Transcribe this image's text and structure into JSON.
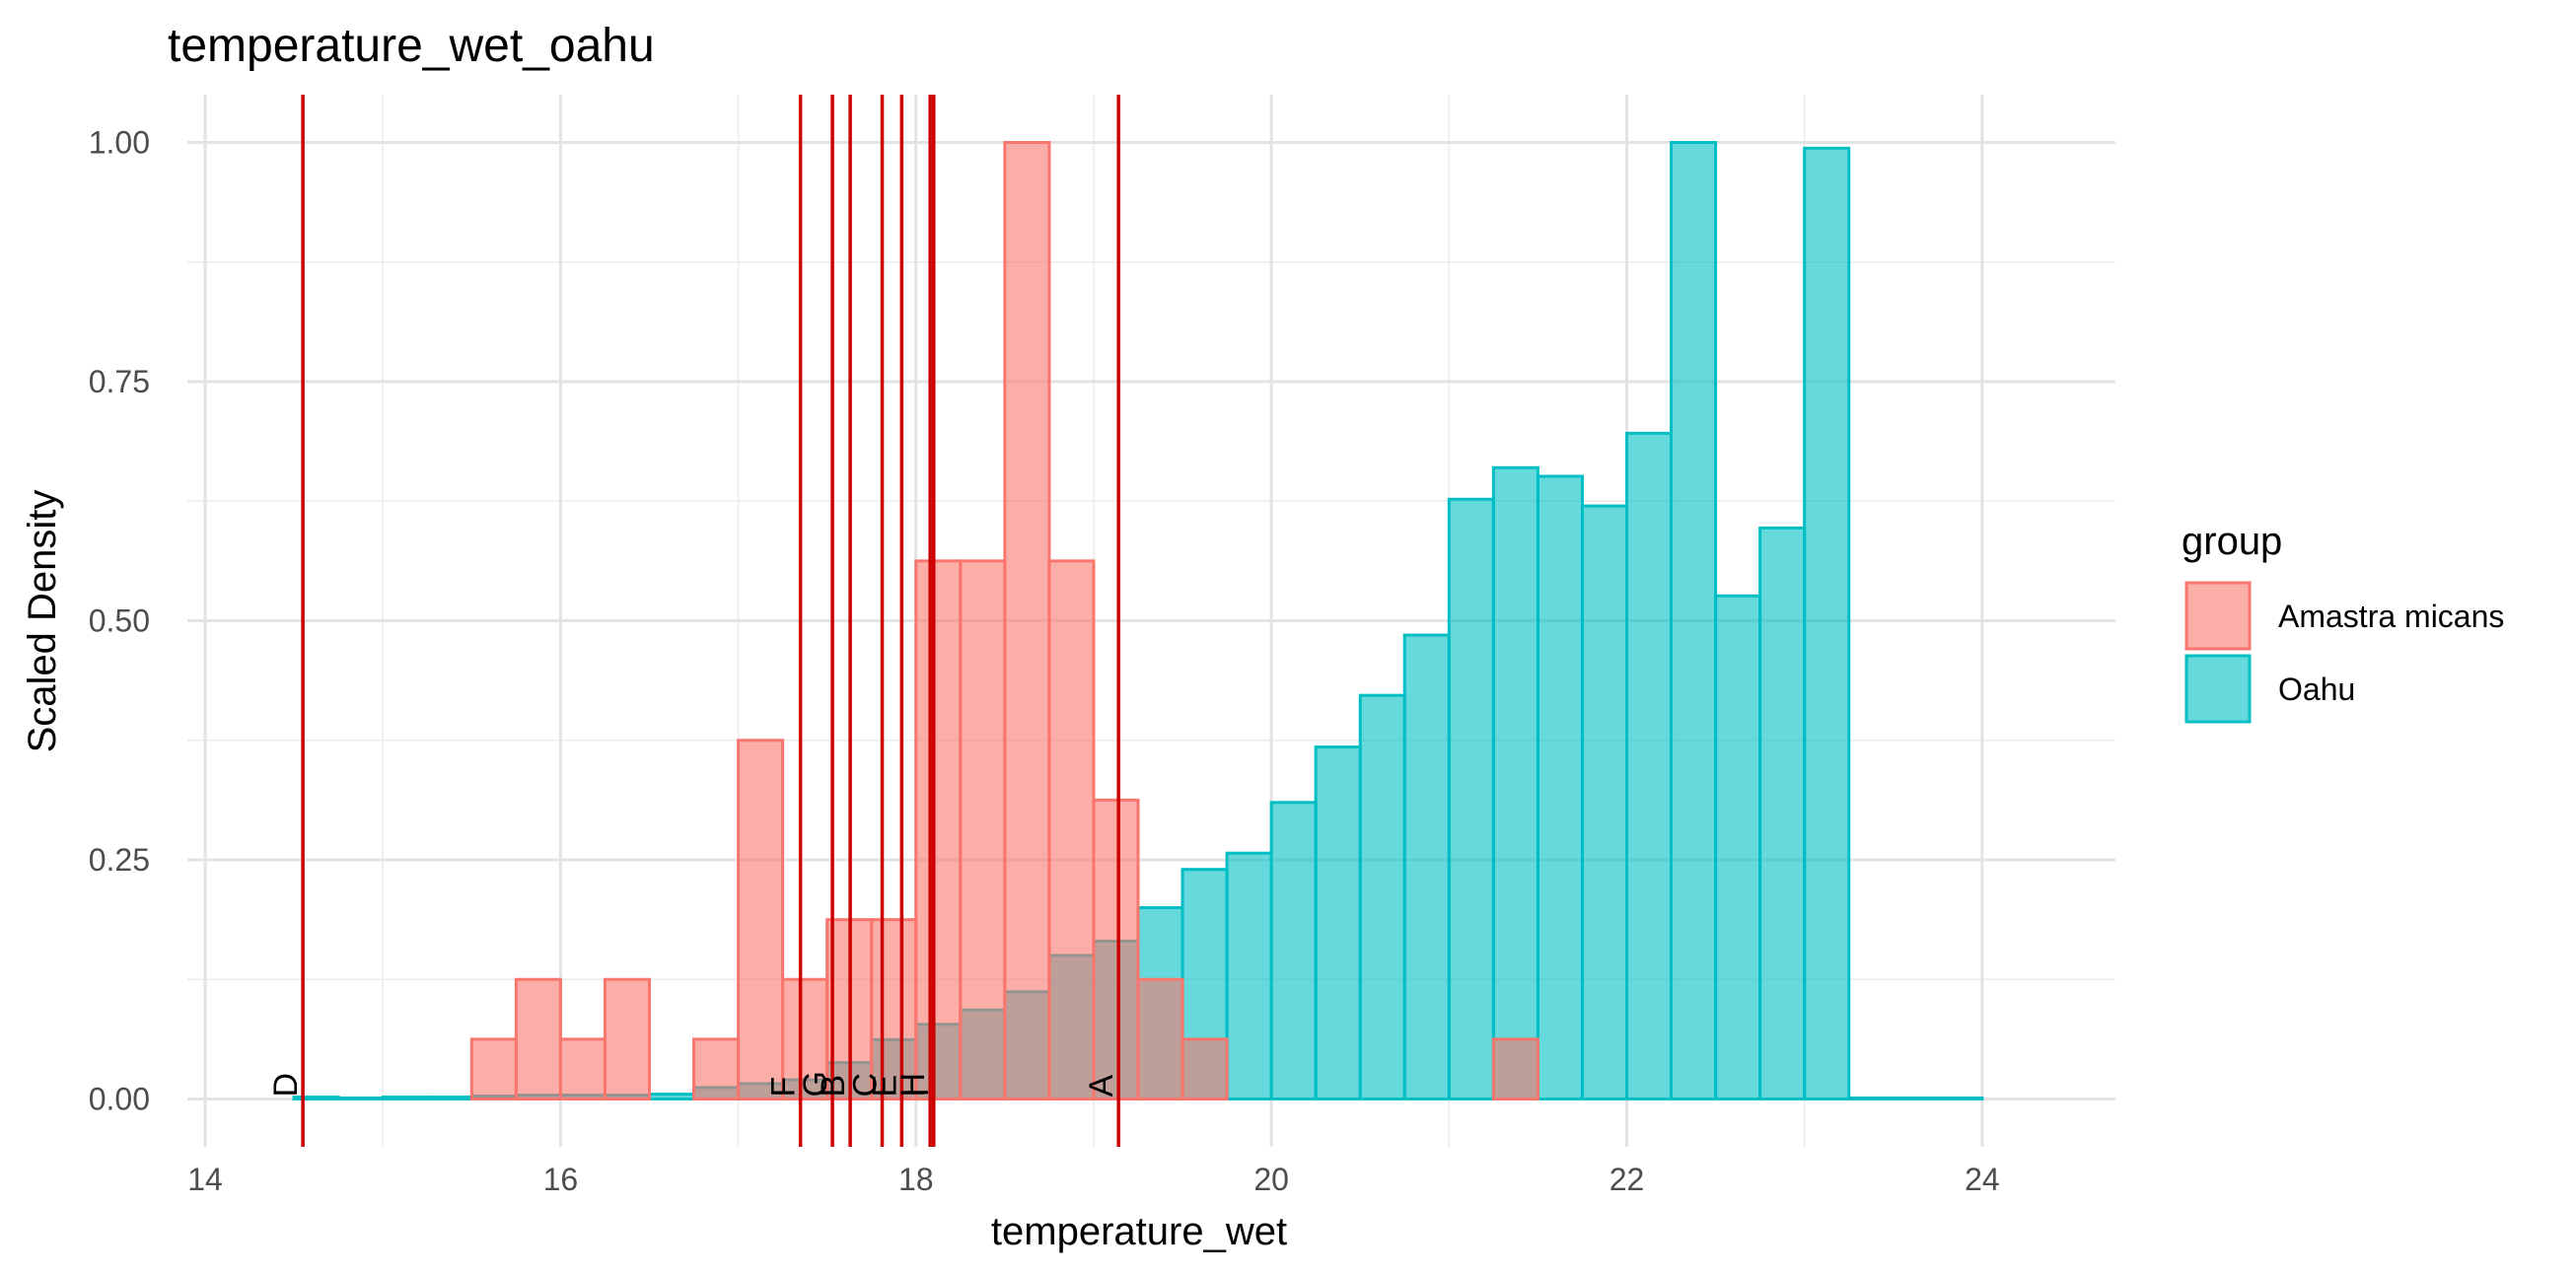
{
  "chart_data": {
    "type": "bar",
    "title": "temperature_wet_oahu",
    "xlabel": "temperature_wet",
    "ylabel": "Scaled Density",
    "xlim": [
      13.9,
      24.75
    ],
    "ylim": [
      -0.05,
      1.05
    ],
    "x_ticks": [
      14,
      16,
      18,
      20,
      22,
      24
    ],
    "x_tick_labels": [
      "14",
      "16",
      "18",
      "20",
      "22",
      "24"
    ],
    "y_ticks": [
      0,
      0.25,
      0.5,
      0.75,
      1.0
    ],
    "y_tick_labels": [
      "0.00",
      "0.25",
      "0.50",
      "0.75",
      "1.00"
    ],
    "grid": true,
    "bin_width": 0.25,
    "legend": {
      "title": "group",
      "position": "right",
      "entries": [
        {
          "label": "Amastra micans",
          "fill": "#F8766D",
          "stroke": "#F8766D"
        },
        {
          "label": "Oahu",
          "fill": "#00BFC4",
          "stroke": "#00BFC4"
        }
      ]
    },
    "series": [
      {
        "name": "Amastra micans",
        "color": "#F8766D",
        "bins": [
          {
            "x": 15.625,
            "y": 0.0625
          },
          {
            "x": 15.875,
            "y": 0.125
          },
          {
            "x": 16.125,
            "y": 0.0625
          },
          {
            "x": 16.375,
            "y": 0.125
          },
          {
            "x": 16.875,
            "y": 0.0625
          },
          {
            "x": 17.125,
            "y": 0.375
          },
          {
            "x": 17.375,
            "y": 0.125
          },
          {
            "x": 17.625,
            "y": 0.1875
          },
          {
            "x": 17.875,
            "y": 0.1875
          },
          {
            "x": 18.125,
            "y": 0.5625
          },
          {
            "x": 18.375,
            "y": 0.5625
          },
          {
            "x": 18.625,
            "y": 1.0
          },
          {
            "x": 18.875,
            "y": 0.5625
          },
          {
            "x": 19.125,
            "y": 0.3125
          },
          {
            "x": 19.375,
            "y": 0.125
          },
          {
            "x": 19.625,
            "y": 0.0625
          },
          {
            "x": 21.375,
            "y": 0.0625
          }
        ]
      },
      {
        "name": "Oahu",
        "color": "#00BFC4",
        "bins": [
          {
            "x": 14.625,
            "y": 0.002
          },
          {
            "x": 14.875,
            "y": 0.001
          },
          {
            "x": 15.125,
            "y": 0.002
          },
          {
            "x": 15.375,
            "y": 0.002
          },
          {
            "x": 15.625,
            "y": 0.003
          },
          {
            "x": 15.875,
            "y": 0.004
          },
          {
            "x": 16.125,
            "y": 0.004
          },
          {
            "x": 16.375,
            "y": 0.004
          },
          {
            "x": 16.625,
            "y": 0.005
          },
          {
            "x": 16.875,
            "y": 0.012
          },
          {
            "x": 17.125,
            "y": 0.016
          },
          {
            "x": 17.375,
            "y": 0.02
          },
          {
            "x": 17.625,
            "y": 0.038
          },
          {
            "x": 17.875,
            "y": 0.062
          },
          {
            "x": 18.125,
            "y": 0.078
          },
          {
            "x": 18.375,
            "y": 0.093
          },
          {
            "x": 18.625,
            "y": 0.112
          },
          {
            "x": 18.875,
            "y": 0.15
          },
          {
            "x": 19.125,
            "y": 0.165
          },
          {
            "x": 19.375,
            "y": 0.2
          },
          {
            "x": 19.625,
            "y": 0.24
          },
          {
            "x": 19.875,
            "y": 0.257
          },
          {
            "x": 20.125,
            "y": 0.31
          },
          {
            "x": 20.375,
            "y": 0.368
          },
          {
            "x": 20.625,
            "y": 0.422
          },
          {
            "x": 20.875,
            "y": 0.485
          },
          {
            "x": 21.125,
            "y": 0.627
          },
          {
            "x": 21.375,
            "y": 0.66
          },
          {
            "x": 21.625,
            "y": 0.651
          },
          {
            "x": 21.875,
            "y": 0.62
          },
          {
            "x": 22.125,
            "y": 0.696
          },
          {
            "x": 22.375,
            "y": 1.0
          },
          {
            "x": 22.625,
            "y": 0.526
          },
          {
            "x": 22.875,
            "y": 0.597
          },
          {
            "x": 23.125,
            "y": 0.994
          },
          {
            "x": 23.375,
            "y": 0.001
          },
          {
            "x": 23.625,
            "y": 0.001
          },
          {
            "x": 23.875,
            "y": 0.001
          }
        ]
      }
    ],
    "vlines": {
      "color": "#CC0000",
      "lines": [
        {
          "x": 14.55,
          "label": "D"
        },
        {
          "x": 17.35,
          "label": "F"
        },
        {
          "x": 17.53,
          "label": "G"
        },
        {
          "x": 17.63,
          "label": "B"
        },
        {
          "x": 17.81,
          "label": "C"
        },
        {
          "x": 17.92,
          "label": "E"
        },
        {
          "x": 18.08,
          "label": "H"
        },
        {
          "x": 18.1,
          "label": "I"
        },
        {
          "x": 19.14,
          "label": "A"
        }
      ]
    }
  }
}
